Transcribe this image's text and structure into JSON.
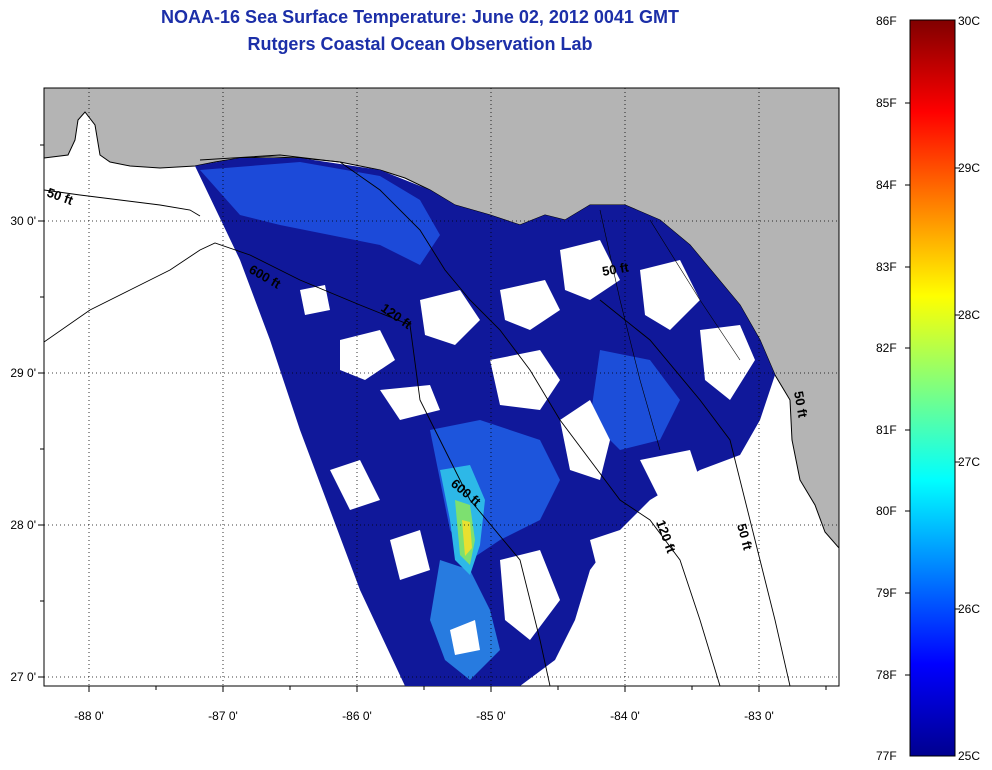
{
  "title": {
    "line1": "NOAA-16 Sea Surface Temperature:  June 02, 2012 0041 GMT",
    "line2": "Rutgers Coastal Ocean Observation Lab"
  },
  "axes": {
    "lon_labels": [
      "-88 0'",
      "-87 0'",
      "-86 0'",
      "-85 0'",
      "-84 0'",
      "-83 0'"
    ],
    "lat_labels": [
      "30 0'",
      "29 0'",
      "28 0'",
      "27 0'"
    ]
  },
  "contours": {
    "labels": [
      "50 ft",
      "600 ft",
      "120 ft",
      "600 ft",
      "120 ft",
      "50 ft",
      "50 ft",
      "50 ft"
    ]
  },
  "colorbar": {
    "fahrenheit": [
      "86F",
      "85F",
      "84F",
      "83F",
      "82F",
      "81F",
      "80F",
      "79F",
      "78F",
      "77F"
    ],
    "celsius": [
      "30C",
      "29C",
      "28C",
      "27C",
      "26C",
      "25C"
    ]
  },
  "colors": {
    "land": "#b4b4b4",
    "title": "#1c2fa8",
    "water_deep": "#10189a",
    "water_mid": "#1e50e0",
    "water_warm": "#2db8e8"
  }
}
